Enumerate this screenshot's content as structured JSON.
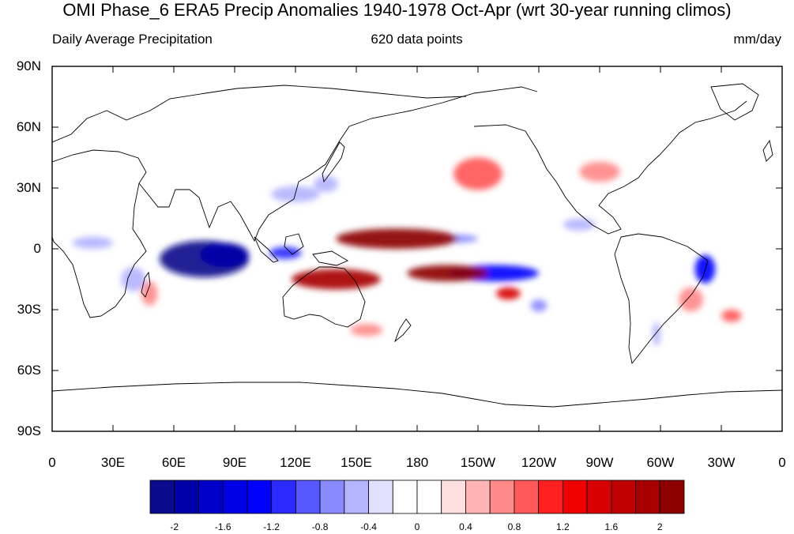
{
  "title": "OMI Phase_6 ERA5 Precip Anomalies 1940-1978 Oct-Apr (wrt 30-year running climos)",
  "subtitle_left": "Daily Average Precipitation",
  "subtitle_center": "620 data points",
  "subtitle_right": "mm/day",
  "lat_labels": [
    "90N",
    "60N",
    "30N",
    "0",
    "30S",
    "60S",
    "90S"
  ],
  "lon_labels": [
    "0",
    "30E",
    "60E",
    "90E",
    "120E",
    "150E",
    "180",
    "150W",
    "120W",
    "90W",
    "60W",
    "30W",
    "0"
  ],
  "colorbar": {
    "colors": [
      "#0a0a8c",
      "#0000a8",
      "#0000c8",
      "#0000e6",
      "#0000ff",
      "#2b2bff",
      "#5858ff",
      "#8a8aff",
      "#b4b4ff",
      "#e0e0ff",
      "#ffffff",
      "#ffffff",
      "#ffe0e0",
      "#ffb4b4",
      "#ff8a8a",
      "#ff5858",
      "#ff2020",
      "#f00000",
      "#d80000",
      "#c00000",
      "#a80000",
      "#8c0000"
    ],
    "tick_labels": [
      "-2",
      "-1.6",
      "-1.2",
      "-0.8",
      "-0.4",
      "0",
      "0.4",
      "0.8",
      "1.2",
      "1.6",
      "2"
    ],
    "tick_positions": [
      1,
      3,
      5,
      7,
      9,
      11,
      13,
      15,
      17,
      19,
      21
    ],
    "range": [
      -2.2,
      2.2
    ]
  },
  "chart_data": {
    "type": "heatmap",
    "projection": "cylindrical equidistant",
    "variable": "precipitation anomaly",
    "units": "mm/day",
    "lon_range": [
      0,
      360
    ],
    "lat_range": [
      -90,
      90
    ],
    "anomaly_features": [
      {
        "sign": "negative",
        "lon": 75,
        "lat": -5,
        "rx": 22,
        "ry": 9,
        "value": -2.2
      },
      {
        "sign": "negative",
        "lon": 85,
        "lat": -3,
        "rx": 12,
        "ry": 6,
        "value": -1.9
      },
      {
        "sign": "negative",
        "lon": 115,
        "lat": -2,
        "rx": 8,
        "ry": 3,
        "value": -1.2
      },
      {
        "sign": "negative",
        "lon": 40,
        "lat": -15,
        "rx": 6,
        "ry": 6,
        "value": -0.6
      },
      {
        "sign": "negative",
        "lon": 20,
        "lat": 3,
        "rx": 10,
        "ry": 3,
        "value": -0.5
      },
      {
        "sign": "negative",
        "lon": 120,
        "lat": 27,
        "rx": 12,
        "ry": 4,
        "value": -0.6
      },
      {
        "sign": "negative",
        "lon": 135,
        "lat": 32,
        "rx": 6,
        "ry": 4,
        "value": -0.5
      },
      {
        "sign": "negative",
        "lon": 200,
        "lat": 5,
        "rx": 10,
        "ry": 2,
        "value": -0.7
      },
      {
        "sign": "negative",
        "lon": 218,
        "lat": -12,
        "rx": 22,
        "ry": 4,
        "value": -1.3
      },
      {
        "sign": "negative",
        "lon": 240,
        "lat": -28,
        "rx": 4,
        "ry": 3,
        "value": -0.8
      },
      {
        "sign": "negative",
        "lon": 260,
        "lat": 12,
        "rx": 8,
        "ry": 3,
        "value": -0.5
      },
      {
        "sign": "negative",
        "lon": 322,
        "lat": -10,
        "rx": 5,
        "ry": 7,
        "value": -1.4
      },
      {
        "sign": "negative",
        "lon": 298,
        "lat": -42,
        "rx": 2,
        "ry": 6,
        "value": -0.6
      },
      {
        "sign": "positive",
        "lon": 170,
        "lat": 5,
        "rx": 30,
        "ry": 5,
        "value": 2.2
      },
      {
        "sign": "positive",
        "lon": 195,
        "lat": -12,
        "rx": 20,
        "ry": 4,
        "value": 2.2
      },
      {
        "sign": "positive",
        "lon": 140,
        "lat": -15,
        "rx": 22,
        "ry": 5,
        "value": 1.8
      },
      {
        "sign": "positive",
        "lon": 225,
        "lat": -22,
        "rx": 6,
        "ry": 3,
        "value": 1.5
      },
      {
        "sign": "positive",
        "lon": 210,
        "lat": 37,
        "rx": 12,
        "ry": 8,
        "value": 0.9
      },
      {
        "sign": "positive",
        "lon": 270,
        "lat": 38,
        "rx": 10,
        "ry": 5,
        "value": 0.6
      },
      {
        "sign": "positive",
        "lon": 315,
        "lat": -25,
        "rx": 6,
        "ry": 6,
        "value": 0.6
      },
      {
        "sign": "positive",
        "lon": 335,
        "lat": -33,
        "rx": 5,
        "ry": 3,
        "value": 0.9
      },
      {
        "sign": "positive",
        "lon": 48,
        "lat": -22,
        "rx": 4,
        "ry": 6,
        "value": 0.8
      },
      {
        "sign": "positive",
        "lon": 155,
        "lat": -40,
        "rx": 8,
        "ry": 3,
        "value": 0.6
      }
    ]
  }
}
